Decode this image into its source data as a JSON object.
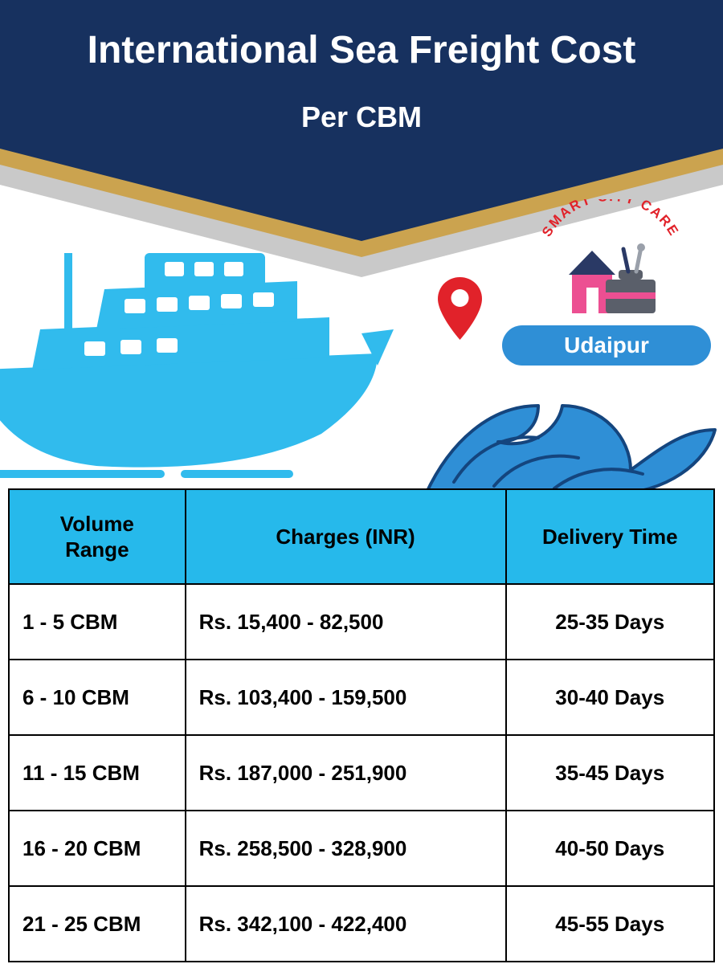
{
  "header": {
    "title": "International Sea Freight Cost",
    "subtitle": "Per CBM",
    "band_color": "#17315f",
    "gold_band_color": "#cba34f",
    "grey_band_color": "#c9c9c9"
  },
  "city": {
    "label": "Udaipur",
    "pill_color": "#2f8fd6",
    "pill_text_color": "#ffffff"
  },
  "pin": {
    "fill": "#e1222a",
    "hole": "#ffffff"
  },
  "ship": {
    "body_color": "#31bbed",
    "window_color": "#ffffff"
  },
  "wave": {
    "stroke": "#14457e",
    "fill": "#2f8fd6"
  },
  "logo": {
    "arc_text": "SMART CITY CARE",
    "arc_color": "#e1222a",
    "house_body": "#ec4f92",
    "house_roof": "#2a3965",
    "toolbox": "#5a5f6a",
    "toolbox_accent": "#ec4f92"
  },
  "table": {
    "header_bg": "#26b9eb",
    "border_color": "#000000",
    "columns": [
      "Volume Range",
      "Charges (INR)",
      "Delivery Time"
    ],
    "rows": [
      [
        "1 - 5 CBM",
        "Rs. 15,400 - 82,500",
        "25-35 Days"
      ],
      [
        "6 - 10 CBM",
        "Rs. 103,400 - 159,500",
        "30-40 Days"
      ],
      [
        "11 - 15 CBM",
        "Rs. 187,000 - 251,900",
        "35-45 Days"
      ],
      [
        "16 - 20 CBM",
        "Rs. 258,500 - 328,900",
        "40-50 Days"
      ],
      [
        "21 - 25 CBM",
        "Rs. 342,100 - 422,400",
        "45-55 Days"
      ]
    ]
  }
}
